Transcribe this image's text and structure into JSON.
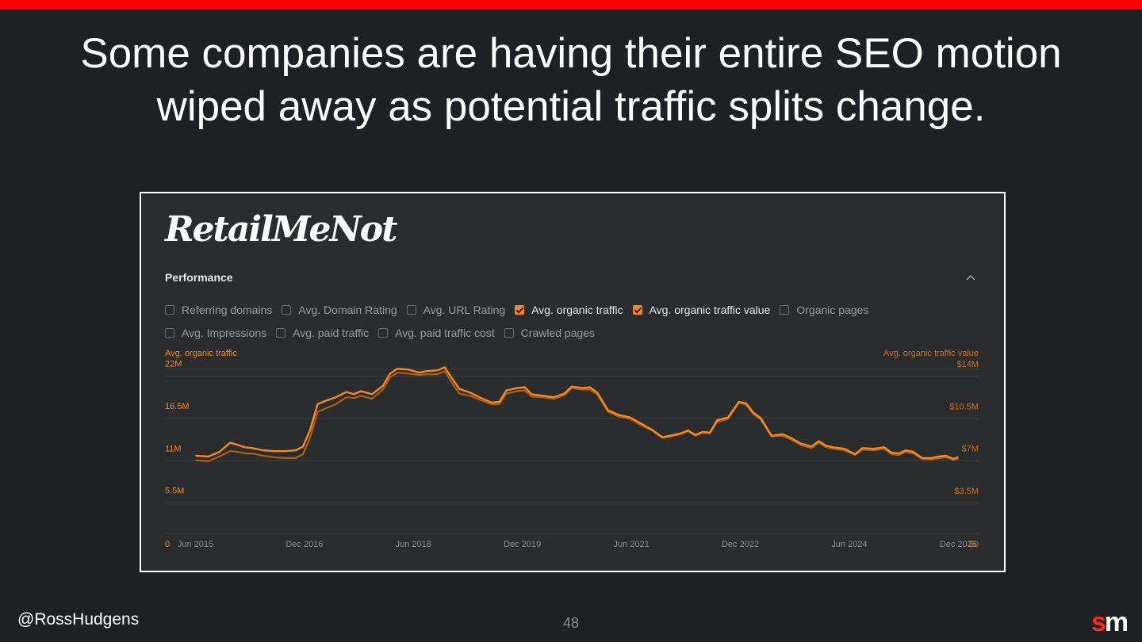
{
  "slide": {
    "headline_line1": "Some companies are having their entire SEO motion",
    "headline_line2": "wiped away as potential traffic splits change.",
    "handle": "@RossHudgens",
    "page_number": "48",
    "brand_s": "s",
    "brand_m": "m",
    "accent_color": "#ff0000"
  },
  "panel": {
    "logo_text": "RetailMeNot",
    "section_title": "Performance",
    "collapse_icon": "chevron-up-icon",
    "options_row1": [
      {
        "label": "Referring domains",
        "checked": false
      },
      {
        "label": "Avg. Domain Rating",
        "checked": false
      },
      {
        "label": "Avg. URL Rating",
        "checked": false
      },
      {
        "label": "Avg. organic traffic",
        "checked": true
      },
      {
        "label": "Avg. organic traffic value",
        "checked": true
      },
      {
        "label": "Organic pages",
        "checked": false
      }
    ],
    "options_row2": [
      {
        "label": "Avg. Impressions",
        "checked": false
      },
      {
        "label": "Avg. paid traffic",
        "checked": false
      },
      {
        "label": "Avg. paid traffic cost",
        "checked": false
      },
      {
        "label": "Crawled pages",
        "checked": false
      }
    ]
  },
  "chart_data": {
    "type": "line",
    "left_axis_title": "Avg. organic traffic",
    "right_axis_title": "Avg. organic traffic value",
    "left_ticks": [
      "22M",
      "16.5M",
      "11M",
      "5.5M",
      "0"
    ],
    "left_tick_values": [
      22000000,
      16500000,
      11000000,
      5500000,
      0
    ],
    "right_ticks": [
      "$14M",
      "$10.5M",
      "$7M",
      "$3.5M",
      "$0"
    ],
    "right_tick_values": [
      14000000,
      10500000,
      7000000,
      3500000,
      0
    ],
    "x_ticks": [
      "Jun 2015",
      "Dec 2016",
      "Jun 2018",
      "Dec 2019",
      "Jun 2021",
      "Dec 2022",
      "Jun 2024",
      "Dec 2025"
    ],
    "x_tick_years": [
      2015.42,
      2016.92,
      2018.42,
      2019.92,
      2021.42,
      2022.92,
      2024.42,
      2025.92
    ],
    "ylim_left": [
      0,
      23500000
    ],
    "ylim_right": [
      0,
      15000000
    ],
    "xlim": [
      2015.0,
      2026.2
    ],
    "grid": true,
    "colors": {
      "traffic": "#f5891f",
      "value": "#a8601a",
      "axis_label": "#f5891f",
      "grid": "#3f4043"
    },
    "series": [
      {
        "name": "Avg. organic traffic",
        "axis": "left",
        "x": [
          2015.42,
          2015.6,
          2015.75,
          2015.9,
          2016.0,
          2016.1,
          2016.2,
          2016.35,
          2016.5,
          2016.65,
          2016.8,
          2016.9,
          2017.0,
          2017.1,
          2017.2,
          2017.35,
          2017.5,
          2017.6,
          2017.7,
          2017.85,
          2018.0,
          2018.1,
          2018.2,
          2018.35,
          2018.5,
          2018.6,
          2018.75,
          2018.85,
          2018.95,
          2019.05,
          2019.2,
          2019.35,
          2019.5,
          2019.6,
          2019.7,
          2019.85,
          2019.95,
          2020.05,
          2020.2,
          2020.35,
          2020.5,
          2020.6,
          2020.75,
          2020.85,
          2020.95,
          2021.1,
          2021.25,
          2021.4,
          2021.55,
          2021.7,
          2021.85,
          2021.95,
          2022.1,
          2022.2,
          2022.3,
          2022.4,
          2022.5,
          2022.6,
          2022.75,
          2022.9,
          2023.0,
          2023.1,
          2023.2,
          2023.35,
          2023.5,
          2023.6,
          2023.75,
          2023.9,
          2024.0,
          2024.1,
          2024.2,
          2024.35,
          2024.5,
          2024.6,
          2024.75,
          2024.9,
          2025.0,
          2025.1,
          2025.2,
          2025.3,
          2025.42,
          2025.55,
          2025.65,
          2025.75,
          2025.85,
          2025.92
        ],
        "y": [
          10.0,
          9.9,
          10.5,
          11.7,
          11.4,
          11.1,
          11.0,
          10.7,
          10.6,
          10.6,
          10.7,
          11.2,
          13.4,
          16.7,
          17.1,
          17.6,
          18.3,
          18.0,
          18.4,
          18.0,
          19.1,
          20.7,
          21.3,
          21.2,
          20.8,
          21.0,
          21.1,
          21.5,
          20.1,
          18.7,
          18.2,
          17.5,
          16.9,
          17.0,
          18.5,
          18.8,
          18.9,
          18.0,
          17.8,
          17.6,
          18.1,
          19.0,
          18.8,
          18.9,
          18.2,
          15.9,
          15.3,
          15.0,
          14.2,
          13.4,
          12.4,
          12.6,
          12.9,
          13.3,
          12.7,
          13.1,
          13.0,
          14.6,
          15.0,
          17.0,
          16.8,
          15.6,
          14.9,
          12.6,
          12.8,
          12.4,
          11.6,
          11.2,
          11.9,
          11.3,
          11.1,
          10.9,
          10.2,
          11.0,
          10.9,
          11.1,
          10.4,
          10.3,
          10.7,
          10.5,
          9.7,
          9.7,
          9.9,
          10.0,
          9.6,
          9.8
        ]
      },
      {
        "name": "Avg. organic traffic value",
        "axis": "left",
        "x": [
          2015.42,
          2015.6,
          2015.75,
          2015.9,
          2016.0,
          2016.1,
          2016.2,
          2016.35,
          2016.5,
          2016.65,
          2016.8,
          2016.9,
          2017.0,
          2017.1,
          2017.2,
          2017.35,
          2017.5,
          2017.6,
          2017.7,
          2017.85,
          2018.0,
          2018.1,
          2018.2,
          2018.35,
          2018.5,
          2018.6,
          2018.75,
          2018.85,
          2018.95,
          2019.05,
          2019.2,
          2019.35,
          2019.5,
          2019.6,
          2019.7,
          2019.85,
          2019.95,
          2020.05,
          2020.2,
          2020.35,
          2020.5,
          2020.6,
          2020.75,
          2020.85,
          2020.95,
          2021.1,
          2021.25,
          2021.4,
          2021.55,
          2021.7,
          2021.85,
          2021.95,
          2022.1,
          2022.2,
          2022.3,
          2022.4,
          2022.5,
          2022.6,
          2022.75,
          2022.9,
          2023.0,
          2023.1,
          2023.2,
          2023.35,
          2023.5,
          2023.6,
          2023.75,
          2023.9,
          2024.0,
          2024.1,
          2024.2,
          2024.35,
          2024.5,
          2024.6,
          2024.75,
          2024.9,
          2025.0,
          2025.1,
          2025.2,
          2025.3,
          2025.42,
          2025.55,
          2025.65,
          2025.75,
          2025.85,
          2025.92
        ],
        "y": [
          9.4,
          9.3,
          9.9,
          10.6,
          10.5,
          10.3,
          10.3,
          10.0,
          9.8,
          9.7,
          9.7,
          10.2,
          12.4,
          15.7,
          16.1,
          16.7,
          17.6,
          17.5,
          17.8,
          17.4,
          18.6,
          20.2,
          20.8,
          20.7,
          20.5,
          20.6,
          20.6,
          21.0,
          19.5,
          18.1,
          17.8,
          17.2,
          16.7,
          16.7,
          18.1,
          18.4,
          18.5,
          17.7,
          17.6,
          17.4,
          17.9,
          18.8,
          18.6,
          18.6,
          18.0,
          15.7,
          15.1,
          14.8,
          14.0,
          13.3,
          12.3,
          12.5,
          12.8,
          13.2,
          12.6,
          13.0,
          12.9,
          14.4,
          14.8,
          16.9,
          16.6,
          15.4,
          14.7,
          12.5,
          12.6,
          12.2,
          11.4,
          11.0,
          11.7,
          11.1,
          10.9,
          10.7,
          10.1,
          10.8,
          10.7,
          10.9,
          10.2,
          10.1,
          10.5,
          10.3,
          9.6,
          9.5,
          9.7,
          9.8,
          9.5,
          9.6
        ]
      }
    ]
  }
}
